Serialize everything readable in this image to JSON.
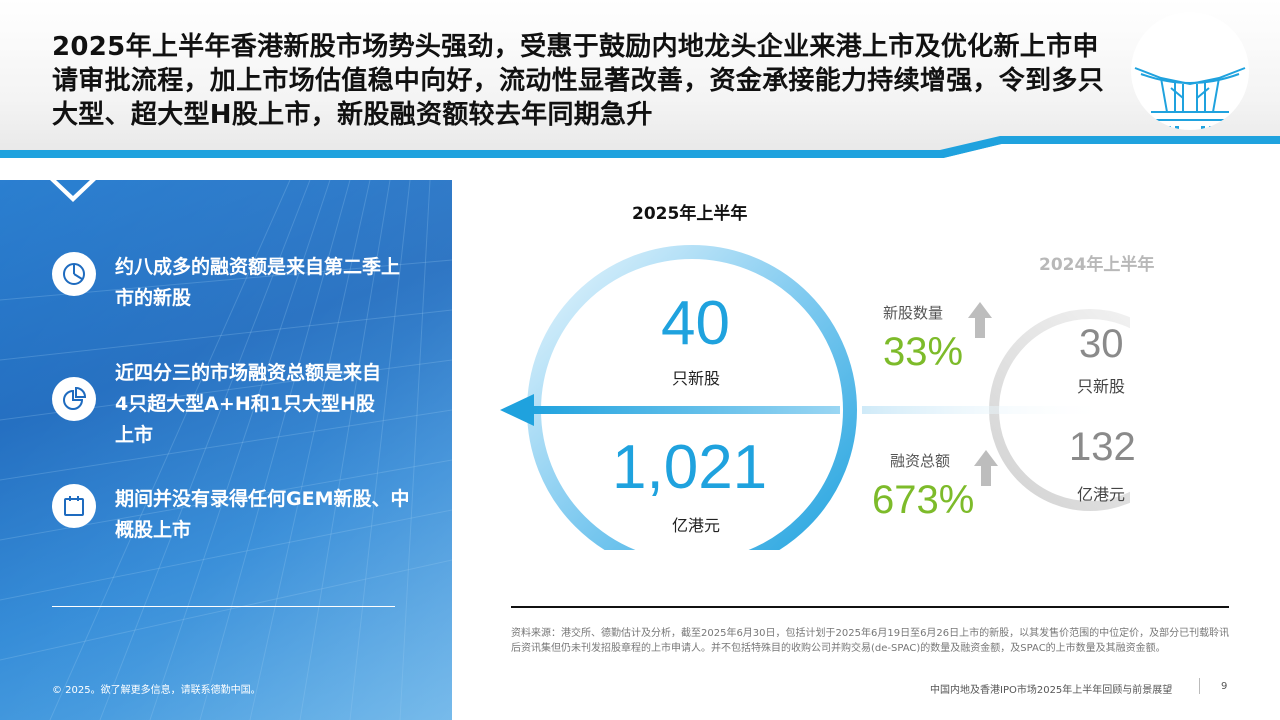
{
  "headline": "2025年上半年香港新股市场势头强劲，受惠于鼓励内地龙头企业来港上市及优化新上市申请审批流程，加上市场估值稳中向好，流动性显著改善，资金承接能力持续增强，令到多只大型、超大型H股上市，新股融资额较去年同期急升",
  "bullets": [
    {
      "icon": "pie-chart-icon",
      "text": "约八成多的融资额是来自第二季上市的新股"
    },
    {
      "icon": "pie-chart-slice-icon",
      "text": "近四分三的市场融资总额是来自4只超大型A+H和1只大型H股上市"
    },
    {
      "icon": "calendar-icon",
      "text": "期间并没有录得任何GEM新股、中概股上市"
    }
  ],
  "copyright": "© 2025。欲了解更多信息，请联系德勤中国。",
  "h1_2025": {
    "title": "2025年上半年",
    "count": "40",
    "count_unit": "只新股",
    "amount": "1,021",
    "amount_unit": "亿港元"
  },
  "h1_2024": {
    "title": "2024年上半年",
    "count": "30",
    "count_unit": "只新股",
    "amount": "132",
    "amount_unit": "亿港元"
  },
  "growth": {
    "count_label": "新股数量",
    "count_pct": "33%",
    "amount_label": "融资总额",
    "amount_pct": "673%"
  },
  "source_note": "资料来源：港交所、德勤估计及分析，截至2025年6月30日，包括计划于2025年6月19日至6月26日上市的新股，以其发售价范围的中位定价，及部分已刊载聆讯后资讯集但仍未刊发招股章程的上市申请人。并不包括特殊目的收购公司并购交易(de-SPAC)的数量及融资金额，及SPAC的上市数量及其融资金额。",
  "footer_title": "中国内地及香港IPO市场2025年上半年回顾与前景展望",
  "page_number": "9",
  "colors": {
    "accent_blue": "#1fa2de",
    "green": "#7dbb2a",
    "panel_blue": "#1e6bbf"
  }
}
